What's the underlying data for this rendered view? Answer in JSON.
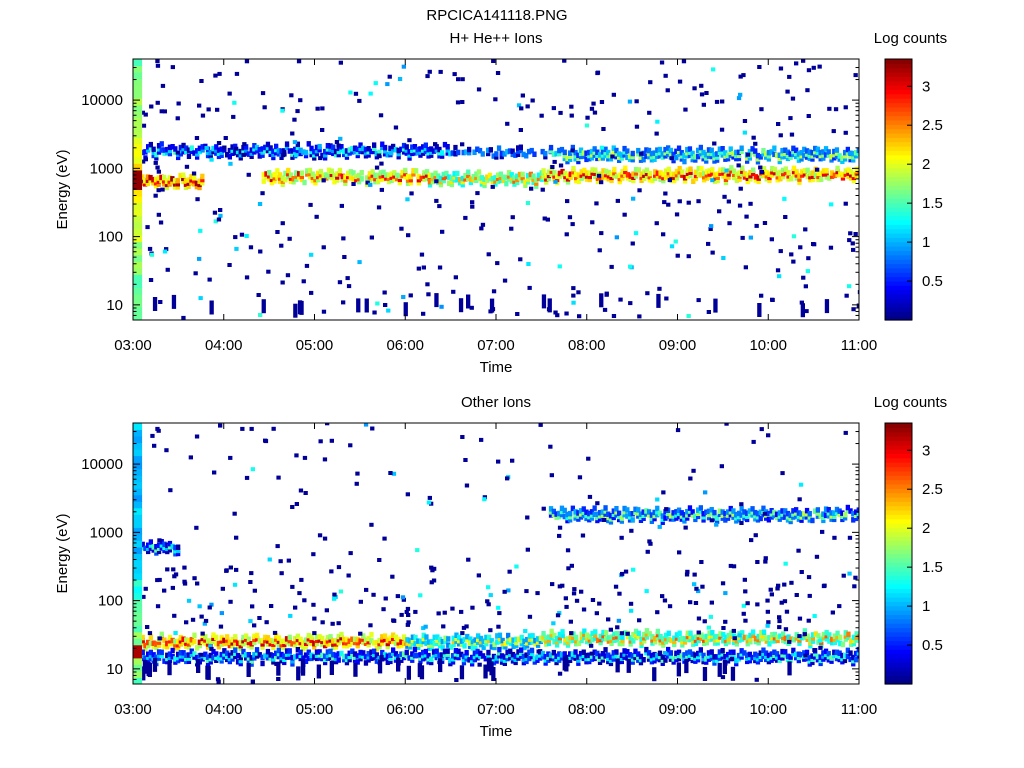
{
  "figure": {
    "title": "RPCICA141118.PNG"
  },
  "chart_data": [
    {
      "type": "heatmap",
      "title": "H+ He++ Ions",
      "xlabel": "Time",
      "ylabel": "Energy (eV)",
      "x_ticks": [
        "03:00",
        "04:00",
        "05:00",
        "06:00",
        "07:00",
        "08:00",
        "09:00",
        "10:00",
        "11:00"
      ],
      "x_range": [
        "03:00",
        "11:00"
      ],
      "y_scale": "log",
      "y_ticks": [
        10,
        100,
        1000,
        10000
      ],
      "y_tick_labels": [
        "10",
        "100",
        "1000",
        "10000"
      ],
      "ylim": [
        6,
        40000
      ],
      "colorbar": {
        "label": "Log counts",
        "range": [
          0,
          3.35
        ],
        "ticks": [
          0.5,
          1,
          1.5,
          2,
          2.5,
          3
        ],
        "tick_labels": [
          "0.5",
          "1",
          "1.5",
          "2",
          "2.5",
          "3"
        ]
      },
      "bands": [
        {
          "start": "03:03",
          "end": "03:45",
          "energy_eV": 650,
          "level": 3.1
        },
        {
          "start": "04:25",
          "end": "06:15",
          "energy_eV": 750,
          "level": 2.8
        },
        {
          "start": "06:15",
          "end": "07:30",
          "energy_eV": 700,
          "level": 2.4
        },
        {
          "start": "07:30",
          "end": "11:00",
          "energy_eV": 800,
          "level": 2.9
        },
        {
          "start": "03:05",
          "end": "06:30",
          "energy_eV": 1800,
          "level": 1.2
        },
        {
          "start": "06:30",
          "end": "07:35",
          "energy_eV": 1700,
          "level": 0.8
        },
        {
          "start": "07:35",
          "end": "11:00",
          "energy_eV": 1600,
          "level": 1.7
        }
      ],
      "vertical_strip": {
        "start": "03:00",
        "end": "03:06",
        "energy_range_eV": [
          6,
          40000
        ],
        "level": 2.3,
        "peak_energy_eV": 700,
        "peak_level": 3.3
      }
    },
    {
      "type": "heatmap",
      "title": "Other Ions",
      "xlabel": "Time",
      "ylabel": "Energy (eV)",
      "x_ticks": [
        "03:00",
        "04:00",
        "05:00",
        "06:00",
        "07:00",
        "08:00",
        "09:00",
        "10:00",
        "11:00"
      ],
      "x_range": [
        "03:00",
        "11:00"
      ],
      "y_scale": "log",
      "y_ticks": [
        10,
        100,
        1000,
        10000
      ],
      "y_tick_labels": [
        "10",
        "100",
        "1000",
        "10000"
      ],
      "ylim": [
        6,
        40000
      ],
      "colorbar": {
        "label": "Log counts",
        "range": [
          0,
          3.35
        ],
        "ticks": [
          0.5,
          1,
          1.5,
          2,
          2.5,
          3
        ],
        "tick_labels": [
          "0.5",
          "1",
          "1.5",
          "2",
          "2.5",
          "3"
        ]
      },
      "bands": [
        {
          "start": "03:05",
          "end": "06:00",
          "energy_eV": 25,
          "level": 2.9
        },
        {
          "start": "06:00",
          "end": "07:30",
          "energy_eV": 25,
          "level": 2.0
        },
        {
          "start": "07:30",
          "end": "11:00",
          "energy_eV": 28,
          "level": 2.4
        },
        {
          "start": "03:05",
          "end": "11:00",
          "energy_eV": 15,
          "level": 1.3
        },
        {
          "start": "07:35",
          "end": "11:00",
          "energy_eV": 1800,
          "level": 1.6
        },
        {
          "start": "03:05",
          "end": "03:30",
          "energy_eV": 600,
          "level": 1.3
        }
      ],
      "vertical_strip": {
        "start": "03:00",
        "end": "03:06",
        "energy_range_eV": [
          6,
          40000
        ],
        "level": 1.8,
        "peak_energy_eV": 18,
        "peak_level": 3.2
      }
    }
  ]
}
